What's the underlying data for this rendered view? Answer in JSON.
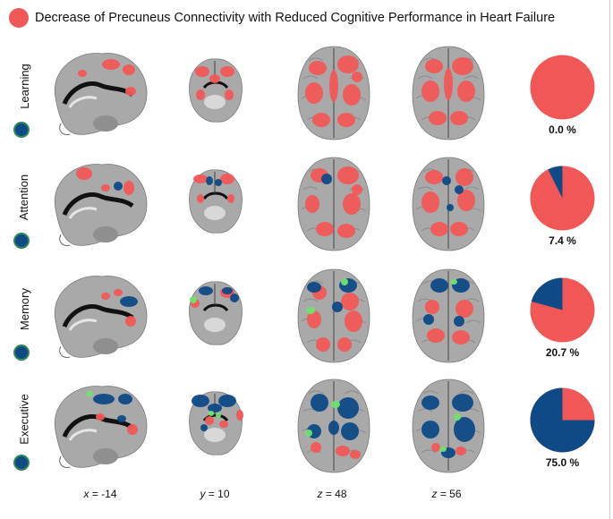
{
  "legend": {
    "label": "Decrease of Precuneus Connectivity with Reduced Cognitive Performance in Heart Failure",
    "color": "#f25757"
  },
  "colors": {
    "decrease": "#f25757",
    "domain": "#0e4a86",
    "overlap": "#6ee36e",
    "brain": "#a9a9a9"
  },
  "rows": [
    {
      "label": "Learning",
      "percent": 0.0,
      "percent_label": "0.0 %"
    },
    {
      "label": "Attention",
      "percent": 7.4,
      "percent_label": "7.4 %"
    },
    {
      "label": "Memory",
      "percent": 20.7,
      "percent_label": "20.7 %"
    },
    {
      "label": "Executive",
      "percent": 75.0,
      "percent_label": "75.0 %"
    }
  ],
  "coords": [
    {
      "axis": "x",
      "value": "= -14"
    },
    {
      "axis": "y",
      "value": "= 10"
    },
    {
      "axis": "z",
      "value": "= 48"
    },
    {
      "axis": "z",
      "value": "= 56"
    }
  ]
}
